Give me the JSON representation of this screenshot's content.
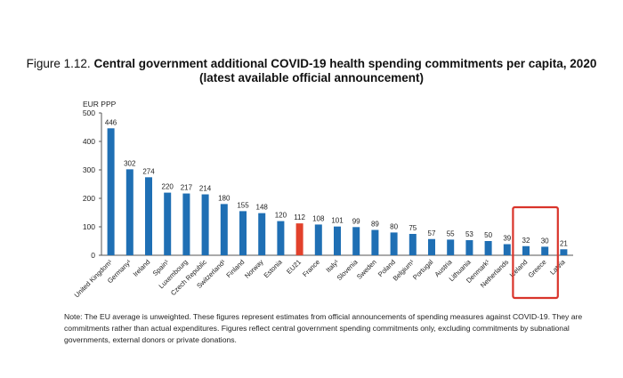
{
  "title": {
    "prefix": "Figure 1.12.",
    "main": "Central government additional COVID-19 health spending commitments per capita, 2020",
    "sub": "(latest available official announcement)"
  },
  "note": "Note: The EU average is unweighted. These figures represent estimates from official announcements of spending measures against COVID-19. They are commitments rather than actual expenditures. Figures reflect central government spending commitments only, excluding commitments by subnational governments, external donors or private donations.",
  "colors": {
    "bar": "#1f6fb4",
    "highlight_bar": "#e2412b",
    "annotation_box": "#d9342b",
    "grid": "#d0d0d0"
  },
  "chart_data": {
    "type": "bar",
    "unit_label": "EUR PPP",
    "ylim": [
      0,
      500
    ],
    "yticks": [
      0,
      100,
      200,
      300,
      400,
      500
    ],
    "grid": false,
    "categories": [
      "United Kingdom¹",
      "Germany¹",
      "Ireland",
      "Spain¹",
      "Luxembourg",
      "Czech Republic",
      "Switzerland¹",
      "Finland",
      "Norway",
      "Estonia",
      "EU21",
      "France",
      "Italy¹",
      "Slovenia",
      "Sweden",
      "Poland",
      "Belgium¹",
      "Portugal",
      "Austria",
      "Lithuania",
      "Denmark¹",
      "Netherlands",
      "Iceland",
      "Greece",
      "Latvia"
    ],
    "values": [
      446,
      302,
      274,
      220,
      217,
      214,
      180,
      155,
      148,
      120,
      112,
      108,
      101,
      99,
      89,
      80,
      75,
      57,
      55,
      53,
      50,
      39,
      32,
      30,
      21
    ],
    "highlight_category": "EU21",
    "annotation_box_categories": [
      "Iceland",
      "Greece"
    ]
  }
}
